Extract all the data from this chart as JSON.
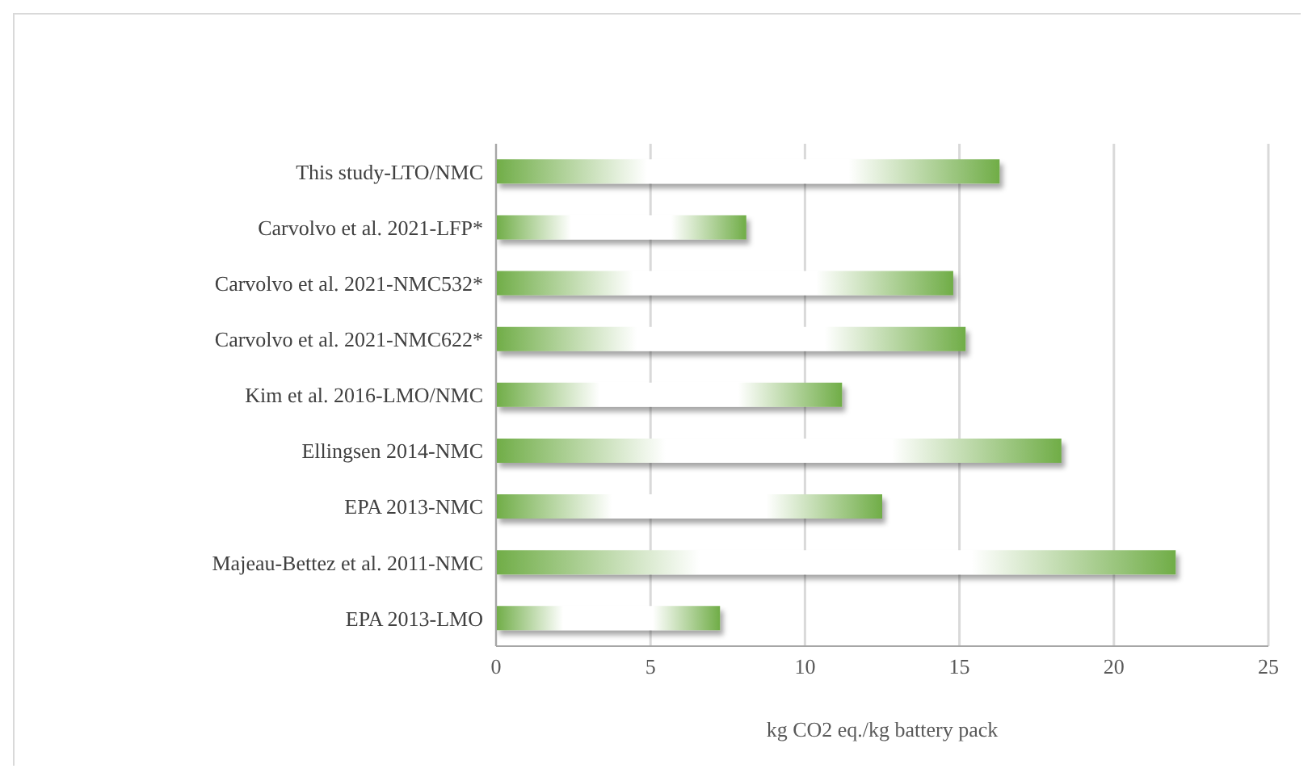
{
  "chart_data": {
    "type": "bar",
    "orientation": "horizontal",
    "categories": [
      "This study-LTO/NMC",
      "Carvolvo et al. 2021-LFP*",
      "Carvolvo et al. 2021-NMC532*",
      "Carvolvo et al. 2021-NMC622*",
      "Kim et al. 2016-LMO/NMC",
      "Ellingsen 2014-NMC",
      "EPA 2013-NMC",
      "Majeau-Bettez et al. 2011-NMC",
      "EPA 2013-LMO"
    ],
    "values": [
      16.3,
      8.1,
      14.8,
      15.2,
      11.2,
      18.3,
      12.5,
      22.0,
      7.25
    ],
    "color": "#70ad47",
    "xlabel": "kg CO2 eq./kg battery pack",
    "xlim": [
      0,
      25
    ],
    "xticks": [
      0,
      5,
      10,
      15,
      20,
      25
    ],
    "grid": "x"
  }
}
